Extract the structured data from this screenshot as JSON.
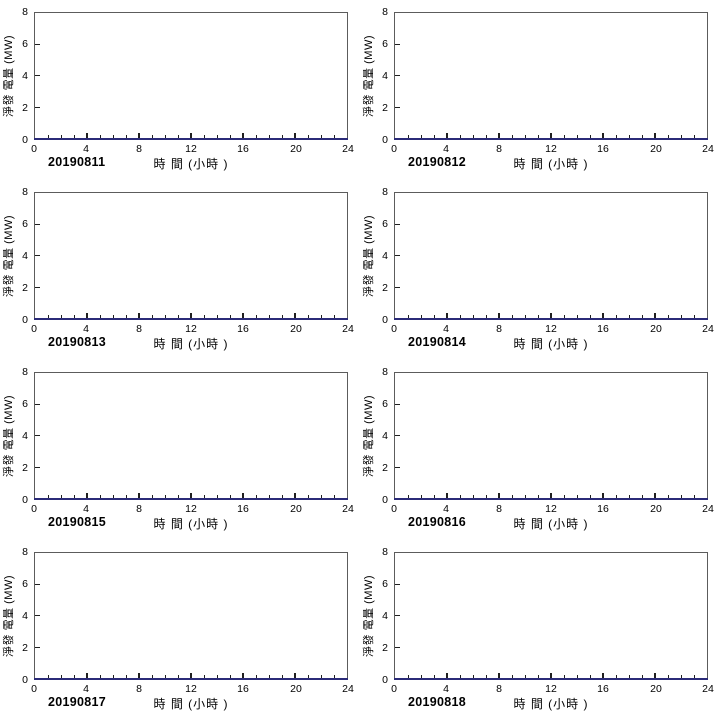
{
  "axis": {
    "ylabel": "淨發 電量 (MW)",
    "xlabel": "時 間 (小時 )",
    "y_ticks": [
      "8",
      "6",
      "4",
      "2",
      "0"
    ],
    "x_ticks": [
      "0",
      "4",
      "8",
      "12",
      "16",
      "20",
      "24"
    ]
  },
  "colors": {
    "line": "#2b2b78",
    "plot_border": "#5c5c5c",
    "tick": "#1f1f1f",
    "text": "#000000",
    "background": "#ffffff"
  },
  "charts": [
    {
      "date": "20190811"
    },
    {
      "date": "20190812"
    },
    {
      "date": "20190813"
    },
    {
      "date": "20190814"
    },
    {
      "date": "20190815"
    },
    {
      "date": "20190816"
    },
    {
      "date": "20190817"
    },
    {
      "date": "20190818"
    }
  ],
  "chart_data": [
    {
      "type": "line",
      "title": "20190811",
      "xlabel": "時 間 (小時 )",
      "ylabel": "淨發 電量 (MW)",
      "xlim": [
        0,
        24
      ],
      "ylim": [
        0,
        8
      ],
      "x_major_ticks": [
        0,
        4,
        8,
        12,
        16,
        20,
        24
      ],
      "x_minor_tick_step": 1,
      "y_major_ticks": [
        0,
        2,
        4,
        6,
        8
      ],
      "grid": false,
      "legend": false,
      "line_color": "#2b2b78",
      "x": [
        0,
        1,
        2,
        3,
        4,
        5,
        6,
        7,
        8,
        9,
        10,
        11,
        12,
        13,
        14,
        15,
        16,
        17,
        18,
        19,
        20,
        21,
        22,
        23,
        24
      ],
      "y": [
        0,
        0,
        0,
        0,
        0,
        0,
        0,
        0,
        0,
        0,
        0,
        0,
        0,
        0,
        0,
        0,
        0,
        0,
        0,
        0,
        0,
        0,
        0,
        0,
        0
      ]
    },
    {
      "type": "line",
      "title": "20190812",
      "xlabel": "時 間 (小時 )",
      "ylabel": "淨發 電量 (MW)",
      "xlim": [
        0,
        24
      ],
      "ylim": [
        0,
        8
      ],
      "x_major_ticks": [
        0,
        4,
        8,
        12,
        16,
        20,
        24
      ],
      "x_minor_tick_step": 1,
      "y_major_ticks": [
        0,
        2,
        4,
        6,
        8
      ],
      "grid": false,
      "legend": false,
      "line_color": "#2b2b78",
      "x": [
        0,
        1,
        2,
        3,
        4,
        5,
        6,
        7,
        8,
        9,
        10,
        11,
        12,
        13,
        14,
        15,
        16,
        17,
        18,
        19,
        20,
        21,
        22,
        23,
        24
      ],
      "y": [
        0,
        0,
        0,
        0,
        0,
        0,
        0,
        0,
        0,
        0,
        0,
        0,
        0,
        0,
        0,
        0,
        0,
        0,
        0,
        0,
        0,
        0,
        0,
        0,
        0
      ]
    },
    {
      "type": "line",
      "title": "20190813",
      "xlabel": "時 間 (小時 )",
      "ylabel": "淨發 電量 (MW)",
      "xlim": [
        0,
        24
      ],
      "ylim": [
        0,
        8
      ],
      "x_major_ticks": [
        0,
        4,
        8,
        12,
        16,
        20,
        24
      ],
      "x_minor_tick_step": 1,
      "y_major_ticks": [
        0,
        2,
        4,
        6,
        8
      ],
      "grid": false,
      "legend": false,
      "line_color": "#2b2b78",
      "x": [
        0,
        1,
        2,
        3,
        4,
        5,
        6,
        7,
        8,
        9,
        10,
        11,
        12,
        13,
        14,
        15,
        16,
        17,
        18,
        19,
        20,
        21,
        22,
        23,
        24
      ],
      "y": [
        0,
        0,
        0,
        0,
        0,
        0,
        0,
        0,
        0,
        0,
        0,
        0,
        0,
        0,
        0,
        0,
        0,
        0,
        0,
        0,
        0,
        0,
        0,
        0,
        0
      ]
    },
    {
      "type": "line",
      "title": "20190814",
      "xlabel": "時 間 (小時 )",
      "ylabel": "淨發 電量 (MW)",
      "xlim": [
        0,
        24
      ],
      "ylim": [
        0,
        8
      ],
      "x_major_ticks": [
        0,
        4,
        8,
        12,
        16,
        20,
        24
      ],
      "x_minor_tick_step": 1,
      "y_major_ticks": [
        0,
        2,
        4,
        6,
        8
      ],
      "grid": false,
      "legend": false,
      "line_color": "#2b2b78",
      "x": [
        0,
        1,
        2,
        3,
        4,
        5,
        6,
        7,
        8,
        9,
        10,
        11,
        12,
        13,
        14,
        15,
        16,
        17,
        18,
        19,
        20,
        21,
        22,
        23,
        24
      ],
      "y": [
        0,
        0,
        0,
        0,
        0,
        0,
        0,
        0,
        0,
        0,
        0,
        0,
        0,
        0,
        0,
        0,
        0,
        0,
        0,
        0,
        0,
        0,
        0,
        0,
        0
      ]
    },
    {
      "type": "line",
      "title": "20190815",
      "xlabel": "時 間 (小時 )",
      "ylabel": "淨發 電量 (MW)",
      "xlim": [
        0,
        24
      ],
      "ylim": [
        0,
        8
      ],
      "x_major_ticks": [
        0,
        4,
        8,
        12,
        16,
        20,
        24
      ],
      "x_minor_tick_step": 1,
      "y_major_ticks": [
        0,
        2,
        4,
        6,
        8
      ],
      "grid": false,
      "legend": false,
      "line_color": "#2b2b78",
      "x": [
        0,
        1,
        2,
        3,
        4,
        5,
        6,
        7,
        8,
        9,
        10,
        11,
        12,
        13,
        14,
        15,
        16,
        17,
        18,
        19,
        20,
        21,
        22,
        23,
        24
      ],
      "y": [
        0,
        0,
        0,
        0,
        0,
        0,
        0,
        0,
        0,
        0,
        0,
        0,
        0,
        0,
        0,
        0,
        0,
        0,
        0,
        0,
        0,
        0,
        0,
        0,
        0
      ]
    },
    {
      "type": "line",
      "title": "20190816",
      "xlabel": "時 間 (小時 )",
      "ylabel": "淨發 電量 (MW)",
      "xlim": [
        0,
        24
      ],
      "ylim": [
        0,
        8
      ],
      "x_major_ticks": [
        0,
        4,
        8,
        12,
        16,
        20,
        24
      ],
      "x_minor_tick_step": 1,
      "y_major_ticks": [
        0,
        2,
        4,
        6,
        8
      ],
      "grid": false,
      "legend": false,
      "line_color": "#2b2b78",
      "x": [
        0,
        1,
        2,
        3,
        4,
        5,
        6,
        7,
        8,
        9,
        10,
        11,
        12,
        13,
        14,
        15,
        16,
        17,
        18,
        19,
        20,
        21,
        22,
        23,
        24
      ],
      "y": [
        0,
        0,
        0,
        0,
        0,
        0,
        0,
        0,
        0,
        0,
        0,
        0,
        0,
        0,
        0,
        0,
        0,
        0,
        0,
        0,
        0,
        0,
        0,
        0,
        0
      ]
    },
    {
      "type": "line",
      "title": "20190817",
      "xlabel": "時 間 (小時 )",
      "ylabel": "淨發 電量 (MW)",
      "xlim": [
        0,
        24
      ],
      "ylim": [
        0,
        8
      ],
      "x_major_ticks": [
        0,
        4,
        8,
        12,
        16,
        20,
        24
      ],
      "x_minor_tick_step": 1,
      "y_major_ticks": [
        0,
        2,
        4,
        6,
        8
      ],
      "grid": false,
      "legend": false,
      "line_color": "#2b2b78",
      "x": [
        0,
        1,
        2,
        3,
        4,
        5,
        6,
        7,
        8,
        9,
        10,
        11,
        12,
        13,
        14,
        15,
        16,
        17,
        18,
        19,
        20,
        21,
        22,
        23,
        24
      ],
      "y": [
        0,
        0,
        0,
        0,
        0,
        0,
        0,
        0,
        0,
        0,
        0,
        0,
        0,
        0,
        0,
        0,
        0,
        0,
        0,
        0,
        0,
        0,
        0,
        0,
        0
      ]
    },
    {
      "type": "line",
      "title": "20190818",
      "xlabel": "時 間 (小時 )",
      "ylabel": "淨發 電量 (MW)",
      "xlim": [
        0,
        24
      ],
      "ylim": [
        0,
        8
      ],
      "x_major_ticks": [
        0,
        4,
        8,
        12,
        16,
        20,
        24
      ],
      "x_minor_tick_step": 1,
      "y_major_ticks": [
        0,
        2,
        4,
        6,
        8
      ],
      "grid": false,
      "legend": false,
      "line_color": "#2b2b78",
      "x": [
        0,
        1,
        2,
        3,
        4,
        5,
        6,
        7,
        8,
        9,
        10,
        11,
        12,
        13,
        14,
        15,
        16,
        17,
        18,
        19,
        20,
        21,
        22,
        23,
        24
      ],
      "y": [
        0,
        0,
        0,
        0,
        0,
        0,
        0,
        0,
        0,
        0,
        0,
        0,
        0,
        0,
        0,
        0,
        0,
        0,
        0,
        0,
        0,
        0,
        0,
        0,
        0
      ]
    }
  ]
}
